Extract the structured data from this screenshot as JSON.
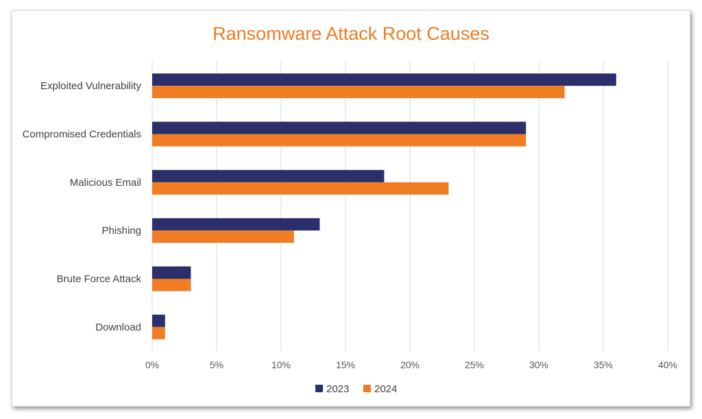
{
  "chart_data": {
    "type": "bar",
    "orientation": "horizontal",
    "title": "Ransomware Attack Root Causes",
    "categories": [
      "Exploited Vulnerability",
      "Compromised Credentials",
      "Malicious Email",
      "Phishing",
      "Brute Force Attack",
      "Download"
    ],
    "series": [
      {
        "name": "2023",
        "color": "#2b2f6b",
        "values": [
          36,
          29,
          18,
          13,
          3,
          1
        ]
      },
      {
        "name": "2024",
        "color": "#f07c24",
        "values": [
          32,
          29,
          23,
          11,
          3,
          1
        ]
      }
    ],
    "xlim": [
      0,
      40
    ],
    "xticks": [
      0,
      5,
      10,
      15,
      20,
      25,
      30,
      35,
      40
    ],
    "tick_suffix": "%",
    "grid": true,
    "legend": "bottom",
    "title_color": "#f07c24"
  }
}
